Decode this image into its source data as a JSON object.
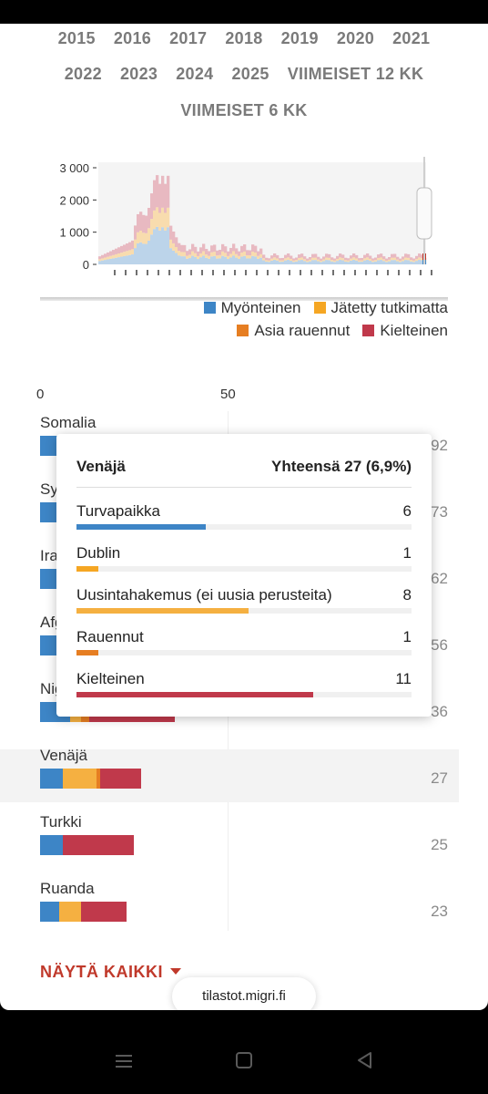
{
  "year_tabs": {
    "row1": [
      "2015",
      "2016",
      "2017",
      "2018",
      "2019",
      "2020",
      "2021"
    ],
    "row2": [
      "2022",
      "2023",
      "2024",
      "2025",
      "VIIMEISET 12 KK"
    ],
    "row3": [
      "VIIMEISET 6 KK"
    ]
  },
  "timeline_chart": {
    "y_ticks": [
      "3 000",
      "2 000",
      "1 000",
      "0"
    ],
    "y_values": [
      3000,
      2000,
      1000,
      0
    ],
    "colors": {
      "blue": "#4a8ac4",
      "yellow": "#f5b041",
      "orange": "#e67e22",
      "red": "#c0392b"
    }
  },
  "legend": {
    "items": [
      {
        "label": "Myönteinen",
        "color": "#3d85c6"
      },
      {
        "label": "Jätetty tutkimatta",
        "color": "#f5a623"
      },
      {
        "label": "Asia rauennut",
        "color": "#e67e22"
      },
      {
        "label": "Kielteinen",
        "color": "#c0394b"
      }
    ]
  },
  "axis": {
    "zero": "0",
    "fifty": "50"
  },
  "countries": [
    {
      "name": "Somalia",
      "total": "92",
      "segments": [
        {
          "v": 8,
          "c": "#3d85c6"
        }
      ]
    },
    {
      "name": "Syyria",
      "total": "73",
      "segments": [
        {
          "v": 8,
          "c": "#3d85c6"
        }
      ]
    },
    {
      "name": "Irak",
      "total": "62",
      "segments": [
        {
          "v": 8,
          "c": "#3d85c6"
        }
      ]
    },
    {
      "name": "Afganistan",
      "total": "56",
      "segments": [
        {
          "v": 8,
          "c": "#3d85c6"
        }
      ]
    },
    {
      "name": "Nigeria",
      "total": "36",
      "segments": [
        {
          "v": 8,
          "c": "#3d85c6"
        },
        {
          "v": 3,
          "c": "#f5b041"
        },
        {
          "v": 2,
          "c": "#e67e22"
        },
        {
          "v": 23,
          "c": "#c0394b"
        }
      ]
    },
    {
      "name": "Venäjä",
      "total": "27",
      "segments": [
        {
          "v": 6,
          "c": "#3d85c6"
        },
        {
          "v": 1,
          "c": "#f5b041"
        },
        {
          "v": 8,
          "c": "#f5b041"
        },
        {
          "v": 1,
          "c": "#e67e22"
        },
        {
          "v": 11,
          "c": "#c0394b"
        }
      ]
    },
    {
      "name": "Turkki",
      "total": "25",
      "segments": [
        {
          "v": 6,
          "c": "#3d85c6"
        },
        {
          "v": 19,
          "c": "#c0394b"
        }
      ]
    },
    {
      "name": "Ruanda",
      "total": "23",
      "segments": [
        {
          "v": 5,
          "c": "#3d85c6"
        },
        {
          "v": 6,
          "c": "#f5b041"
        },
        {
          "v": 12,
          "c": "#c0394b"
        }
      ]
    }
  ],
  "tooltip": {
    "country": "Venäjä",
    "total_label": "Yhteensä 27 (6,9%)",
    "rows": [
      {
        "label": "Turvapaikka",
        "value": "6",
        "n": 6,
        "color": "#3d85c6"
      },
      {
        "label": "Dublin",
        "value": "1",
        "n": 1,
        "color": "#f5a623"
      },
      {
        "label": "Uusintahakemus (ei uusia perusteita)",
        "value": "8",
        "n": 8,
        "color": "#f5b041"
      },
      {
        "label": "Rauennut",
        "value": "1",
        "n": 1,
        "color": "#e67e22"
      },
      {
        "label": "Kielteinen",
        "value": "11",
        "n": 11,
        "color": "#c0394b"
      }
    ]
  },
  "show_all": "NÄYTÄ KAIKKI",
  "url": "tilastot.migri.fi"
}
